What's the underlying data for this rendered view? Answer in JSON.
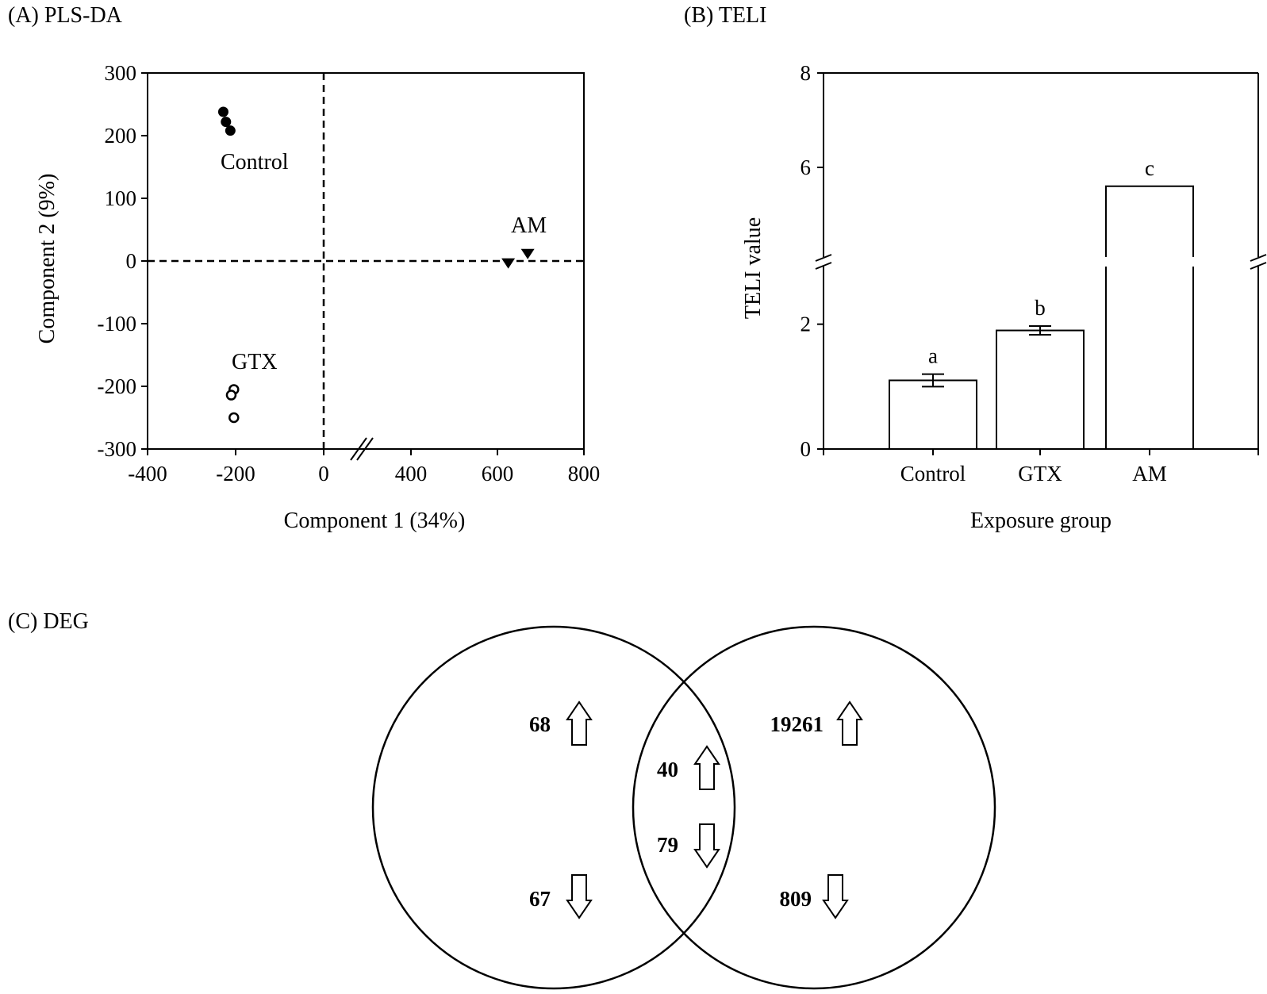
{
  "chart_data": [
    {
      "type": "scatter",
      "panel_label": "(A) PLS-DA",
      "xlabel": "Component 1 (34%)",
      "ylabel": "Component 2 (9%)",
      "xlim": [
        -400,
        800
      ],
      "ylim": [
        -300,
        300
      ],
      "x_ticks": [
        "-400",
        "-200",
        "0",
        "400",
        "600",
        "800"
      ],
      "y_ticks": [
        "300",
        "200",
        "100",
        "0",
        "-100",
        "-200",
        "-300"
      ],
      "x_axis_break": "between 0 and 400",
      "reference_lines": [
        "x = 0 (dashed)",
        "y = 0 (dashed)"
      ],
      "series": [
        {
          "name": "Control",
          "marker": "filled-circle",
          "points": [
            [
              -228,
              238
            ],
            [
              -222,
              222
            ],
            [
              -212,
              208
            ]
          ]
        },
        {
          "name": "GTX",
          "marker": "open-circle",
          "points": [
            [
              -204,
              -205
            ],
            [
              -210,
              -214
            ],
            [
              -204,
              -250
            ]
          ]
        },
        {
          "name": "AM",
          "marker": "filled-down-triangle",
          "points": [
            [
              625,
              -4
            ],
            [
              670,
              11
            ]
          ]
        }
      ]
    },
    {
      "type": "bar",
      "panel_label": "(B) TELI",
      "xlabel": "Exposure group",
      "ylabel": "TELI value",
      "categories": [
        "Control",
        "GTX",
        "AM"
      ],
      "values": [
        1.1,
        1.9,
        5.6
      ],
      "errors": [
        0.1,
        0.07,
        null
      ],
      "significance_letters": [
        "a",
        "b",
        "c"
      ],
      "y_ticks": [
        "0",
        "2",
        "6",
        "8"
      ],
      "y_axis_break": "between 2 and 6",
      "ylim": [
        0,
        8
      ]
    },
    {
      "type": "venn",
      "panel_label": "(C) DEG",
      "sets": 2,
      "regions": {
        "left_only": {
          "up": "68",
          "down": "67"
        },
        "overlap": {
          "up": "40",
          "down": "79"
        },
        "right_only": {
          "up": "19261",
          "down": "809"
        }
      },
      "arrow_icons": {
        "up": "up-arrow-icon",
        "down": "down-arrow-icon"
      }
    }
  ]
}
